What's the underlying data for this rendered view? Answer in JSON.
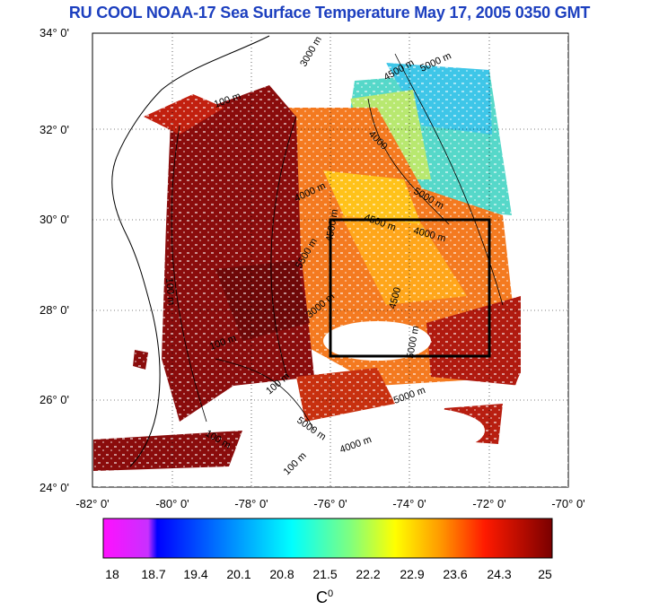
{
  "title": "RU COOL  NOAA-17 Sea Surface Temperature May 17, 2005 0350 GMT",
  "lat_labels": [
    "34° 0'",
    "32° 0'",
    "30° 0'",
    "28° 0'",
    "26° 0'",
    "24° 0'"
  ],
  "lon_labels": [
    "-82° 0'",
    "-80° 0'",
    "-78° 0'",
    "-76° 0'",
    "-74° 0'",
    "-72° 0'",
    "-70° 0'"
  ],
  "map": {
    "lat_range": [
      24,
      34
    ],
    "lon_range": [
      -82,
      -70
    ],
    "study_box": {
      "lon_min": -76,
      "lon_max": -72,
      "lat_min": 27,
      "lat_max": 30
    },
    "contour_labels": [
      "3000 m",
      "4500 m",
      "5000 m",
      "4000",
      "100 m",
      "4000 m",
      "5000 m",
      "4500 m",
      "4000 m",
      "5500 m",
      "4500 m",
      "100 m",
      "3000 m",
      "4500",
      "5000 m",
      "100 m",
      "5000 m",
      "100 m",
      "5000 m",
      "100 m",
      "4000 m",
      "100 m"
    ]
  },
  "colorbar": {
    "ticks": [
      "18",
      "18.7",
      "19.4",
      "20.1",
      "20.8",
      "21.5",
      "22.2",
      "22.9",
      "23.6",
      "24.3",
      "25"
    ],
    "unit": "C",
    "unit_sup": "0",
    "colors": [
      "#ff00ff",
      "#0000ff",
      "#00ffff",
      "#ffff00",
      "#ff0000",
      "#800000"
    ]
  },
  "colors": {
    "title": "#1c3fbf",
    "warm": "#8b0a0a",
    "orange": "#f2711f",
    "cool": "#4fd6c8"
  }
}
